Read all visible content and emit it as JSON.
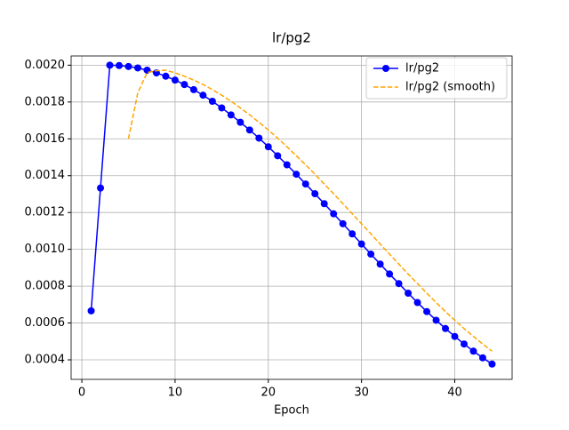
{
  "chart_data": {
    "type": "line",
    "title": "lr/pg2",
    "x_label": "Epoch",
    "series": [
      {
        "name": "lr/pg2",
        "color": "#0000ff",
        "marker": "o",
        "linestyle": "solid",
        "x": [
          1,
          2,
          3,
          4,
          5,
          6,
          7,
          8,
          9,
          10,
          11,
          12,
          13,
          14,
          15,
          16,
          17,
          18,
          19,
          20,
          21,
          22,
          23,
          24,
          25,
          26,
          27,
          28,
          29,
          30,
          31,
          32,
          33,
          34,
          35,
          36,
          37,
          38,
          39,
          40,
          41,
          42,
          43,
          44
        ],
        "values": [
          0.000666,
          0.001333,
          0.002,
          0.001998,
          0.001993,
          0.001985,
          0.001973,
          0.001958,
          0.00194,
          0.001919,
          0.001895,
          0.001867,
          0.001837,
          0.001804,
          0.001768,
          0.00173,
          0.00169,
          0.001648,
          0.001604,
          0.001557,
          0.001508,
          0.001459,
          0.001408,
          0.001355,
          0.001302,
          0.001248,
          0.001193,
          0.001139,
          0.001084,
          0.001029,
          0.000974,
          0.00092,
          0.000866,
          0.000814,
          0.000762,
          0.000711,
          0.000662,
          0.000615,
          0.00057,
          0.000527,
          0.000486,
          0.000447,
          0.000411,
          0.000377
        ]
      },
      {
        "name": "lr/pg2 (smooth)",
        "color": "#ffa500",
        "marker": "none",
        "linestyle": "dashed",
        "x": [
          5,
          6,
          7,
          8,
          9,
          10,
          11,
          12,
          13,
          14,
          15,
          16,
          17,
          18,
          19,
          20,
          21,
          22,
          23,
          24,
          25,
          26,
          27,
          28,
          29,
          30,
          31,
          32,
          33,
          34,
          35,
          36,
          37,
          38,
          39,
          40,
          41,
          42,
          43,
          44
        ],
        "values": [
          0.0016,
          0.00185,
          0.00196,
          0.00197,
          0.001973,
          0.001958,
          0.00194,
          0.001919,
          0.001895,
          0.001867,
          0.001837,
          0.001804,
          0.001768,
          0.00173,
          0.00169,
          0.001648,
          0.001604,
          0.001557,
          0.001508,
          0.001459,
          0.001408,
          0.001355,
          0.001302,
          0.001248,
          0.001193,
          0.001139,
          0.001084,
          0.001029,
          0.000974,
          0.00092,
          0.000866,
          0.000814,
          0.000762,
          0.000711,
          0.000662,
          0.000615,
          0.00057,
          0.000527,
          0.000486,
          0.000447
        ]
      }
    ],
    "xlim": [
      -1.15,
      46.15
    ],
    "xticks": [
      0,
      10,
      20,
      30,
      40
    ],
    "ylim": [
      0.000294,
      0.00205
    ],
    "yticks": [
      {
        "value": 0.0004,
        "label": "0.0004"
      },
      {
        "value": 0.0006,
        "label": "0.0006"
      },
      {
        "value": 0.0008,
        "label": "0.0008"
      },
      {
        "value": 0.001,
        "label": "0.0010"
      },
      {
        "value": 0.0012,
        "label": "0.0012"
      },
      {
        "value": 0.0014,
        "label": "0.0014"
      },
      {
        "value": 0.0016,
        "label": "0.0016"
      },
      {
        "value": 0.0018,
        "label": "0.0018"
      },
      {
        "value": 0.002,
        "label": "0.0020"
      }
    ],
    "grid": true,
    "legend": "upper right"
  }
}
